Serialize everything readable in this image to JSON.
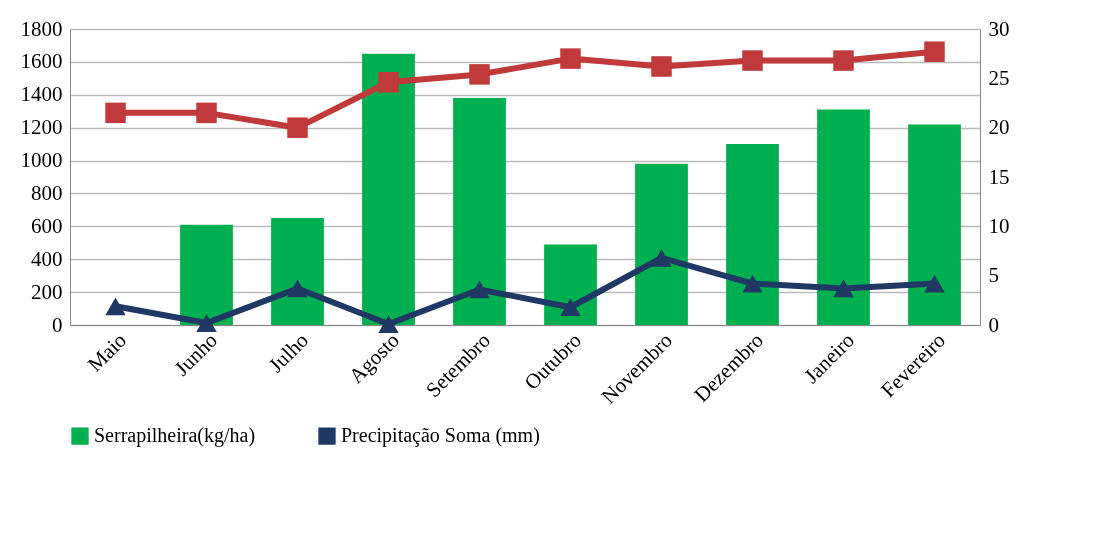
{
  "chart_data": {
    "type": "bar",
    "categories": [
      "Maio",
      "Junho",
      "Julho",
      "Agosto",
      "Setembro",
      "Outubro",
      "Novembro",
      "Dezembro",
      "Janeiro",
      "Fevereiro"
    ],
    "series": [
      {
        "name": "Serrapilheira(kg/ha)",
        "color": "#00b050",
        "values": [
          null,
          610,
          650,
          1650,
          1380,
          490,
          980,
          1100,
          1310,
          1220
        ]
      },
      {
        "type": "line",
        "axis": "y2",
        "marker": "square",
        "color": "#c0393b",
        "values": [
          21.5,
          21.5,
          20.0,
          24.6,
          25.4,
          27.0,
          26.2,
          26.8,
          26.8,
          27.7
        ]
      },
      {
        "name": "Precipitação Soma (mm)",
        "type": "line",
        "axis": "y2",
        "marker": "triangle",
        "color": "#1f3864",
        "values": [
          1.9,
          0.2,
          3.7,
          0.1,
          3.6,
          1.8,
          6.8,
          4.2,
          3.7,
          4.2
        ]
      }
    ],
    "ylim": [
      0,
      1800
    ],
    "yticks": [
      0,
      200,
      400,
      600,
      800,
      1000,
      1200,
      1400,
      1600,
      1800
    ],
    "y2lim": [
      0,
      30
    ],
    "y2ticks": [
      0,
      5,
      10,
      15,
      20,
      25,
      30
    ],
    "grid": "y",
    "legend": "bottom"
  }
}
